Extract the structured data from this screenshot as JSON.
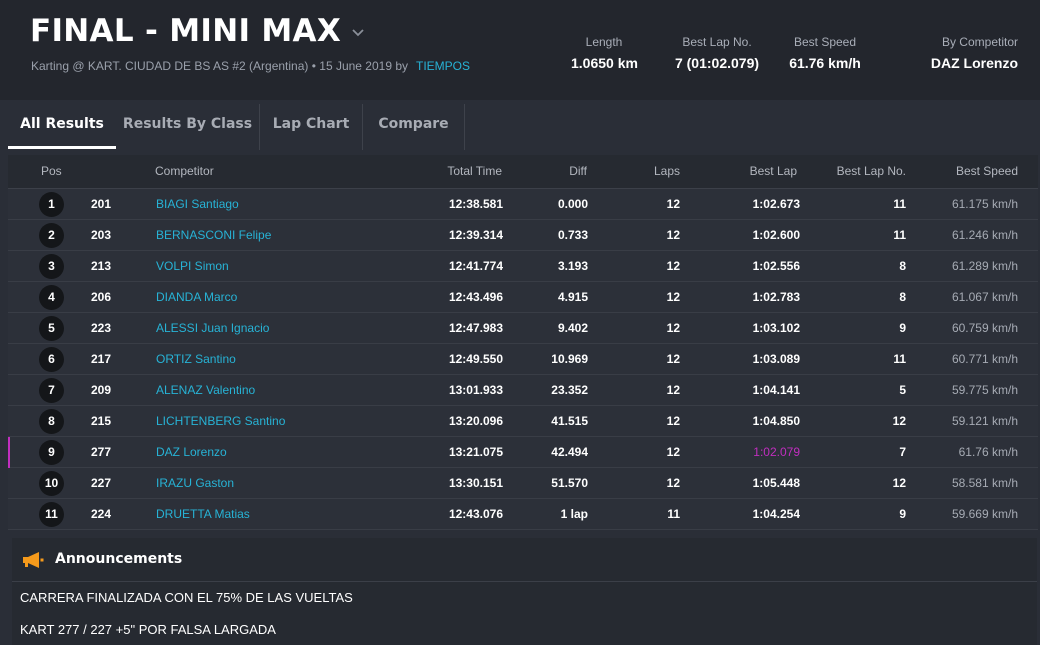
{
  "header": {
    "title": "FINAL - MINI MAX",
    "subtitle": "Karting @ KART. CIUDAD DE BS AS #2 (Argentina) • 15 June 2019 by",
    "subtitle_link": "TIEMPOS",
    "stats": [
      {
        "label": "Length",
        "value": "1.0650 km"
      },
      {
        "label": "Best Lap No.",
        "value": "7 (01:02.079)"
      },
      {
        "label": "Best Speed",
        "value": "61.76 km/h"
      },
      {
        "label": "By Competitor",
        "value": "DAZ Lorenzo"
      }
    ]
  },
  "tabs": [
    "All Results",
    "Results By Class",
    "Lap Chart",
    "Compare"
  ],
  "table": {
    "columns": [
      "Pos",
      "Competitor",
      "Total Time",
      "Diff",
      "Laps",
      "Best Lap",
      "Best Lap No.",
      "Best Speed"
    ],
    "rows": [
      {
        "pos": "1",
        "num": "201",
        "name": "BIAGI Santiago",
        "total": "12:38.581",
        "diff": "0.000",
        "laps": "12",
        "best": "1:02.673",
        "bestno": "11",
        "speed": "61.175 km/h"
      },
      {
        "pos": "2",
        "num": "203",
        "name": "BERNASCONI Felipe",
        "total": "12:39.314",
        "diff": "0.733",
        "laps": "12",
        "best": "1:02.600",
        "bestno": "11",
        "speed": "61.246 km/h"
      },
      {
        "pos": "3",
        "num": "213",
        "name": "VOLPI Simon",
        "total": "12:41.774",
        "diff": "3.193",
        "laps": "12",
        "best": "1:02.556",
        "bestno": "8",
        "speed": "61.289 km/h"
      },
      {
        "pos": "4",
        "num": "206",
        "name": "DIANDA Marco",
        "total": "12:43.496",
        "diff": "4.915",
        "laps": "12",
        "best": "1:02.783",
        "bestno": "8",
        "speed": "61.067 km/h"
      },
      {
        "pos": "5",
        "num": "223",
        "name": "ALESSI Juan Ignacio",
        "total": "12:47.983",
        "diff": "9.402",
        "laps": "12",
        "best": "1:03.102",
        "bestno": "9",
        "speed": "60.759 km/h"
      },
      {
        "pos": "6",
        "num": "217",
        "name": "ORTIZ Santino",
        "total": "12:49.550",
        "diff": "10.969",
        "laps": "12",
        "best": "1:03.089",
        "bestno": "11",
        "speed": "60.771 km/h"
      },
      {
        "pos": "7",
        "num": "209",
        "name": "ALENAZ Valentino",
        "total": "13:01.933",
        "diff": "23.352",
        "laps": "12",
        "best": "1:04.141",
        "bestno": "5",
        "speed": "59.775 km/h"
      },
      {
        "pos": "8",
        "num": "215",
        "name": "LICHTENBERG Santino",
        "total": "13:20.096",
        "diff": "41.515",
        "laps": "12",
        "best": "1:04.850",
        "bestno": "12",
        "speed": "59.121 km/h"
      },
      {
        "pos": "9",
        "num": "277",
        "name": "DAZ Lorenzo",
        "total": "13:21.075",
        "diff": "42.494",
        "laps": "12",
        "best": "1:02.079",
        "bestno": "7",
        "speed": "61.76 km/h",
        "highlight": true
      },
      {
        "pos": "10",
        "num": "227",
        "name": "IRAZU Gaston",
        "total": "13:30.151",
        "diff": "51.570",
        "laps": "12",
        "best": "1:05.448",
        "bestno": "12",
        "speed": "58.581 km/h"
      },
      {
        "pos": "11",
        "num": "224",
        "name": "DRUETTA Matias",
        "total": "12:43.076",
        "diff": "1 lap",
        "laps": "11",
        "best": "1:04.254",
        "bestno": "9",
        "speed": "59.669 km/h"
      }
    ]
  },
  "announcements": {
    "title": "Announcements",
    "icon": "megaphone-icon",
    "items": [
      "CARRERA FINALIZADA CON EL 75% DE LAS VUELTAS",
      "KART 277 / 227 +5\" POR FALSA LARGADA"
    ]
  },
  "colors": {
    "accent": "#27b3d6",
    "best_lap_highlight": "#c12ebf",
    "announcement_icon": "#f59a1b"
  }
}
